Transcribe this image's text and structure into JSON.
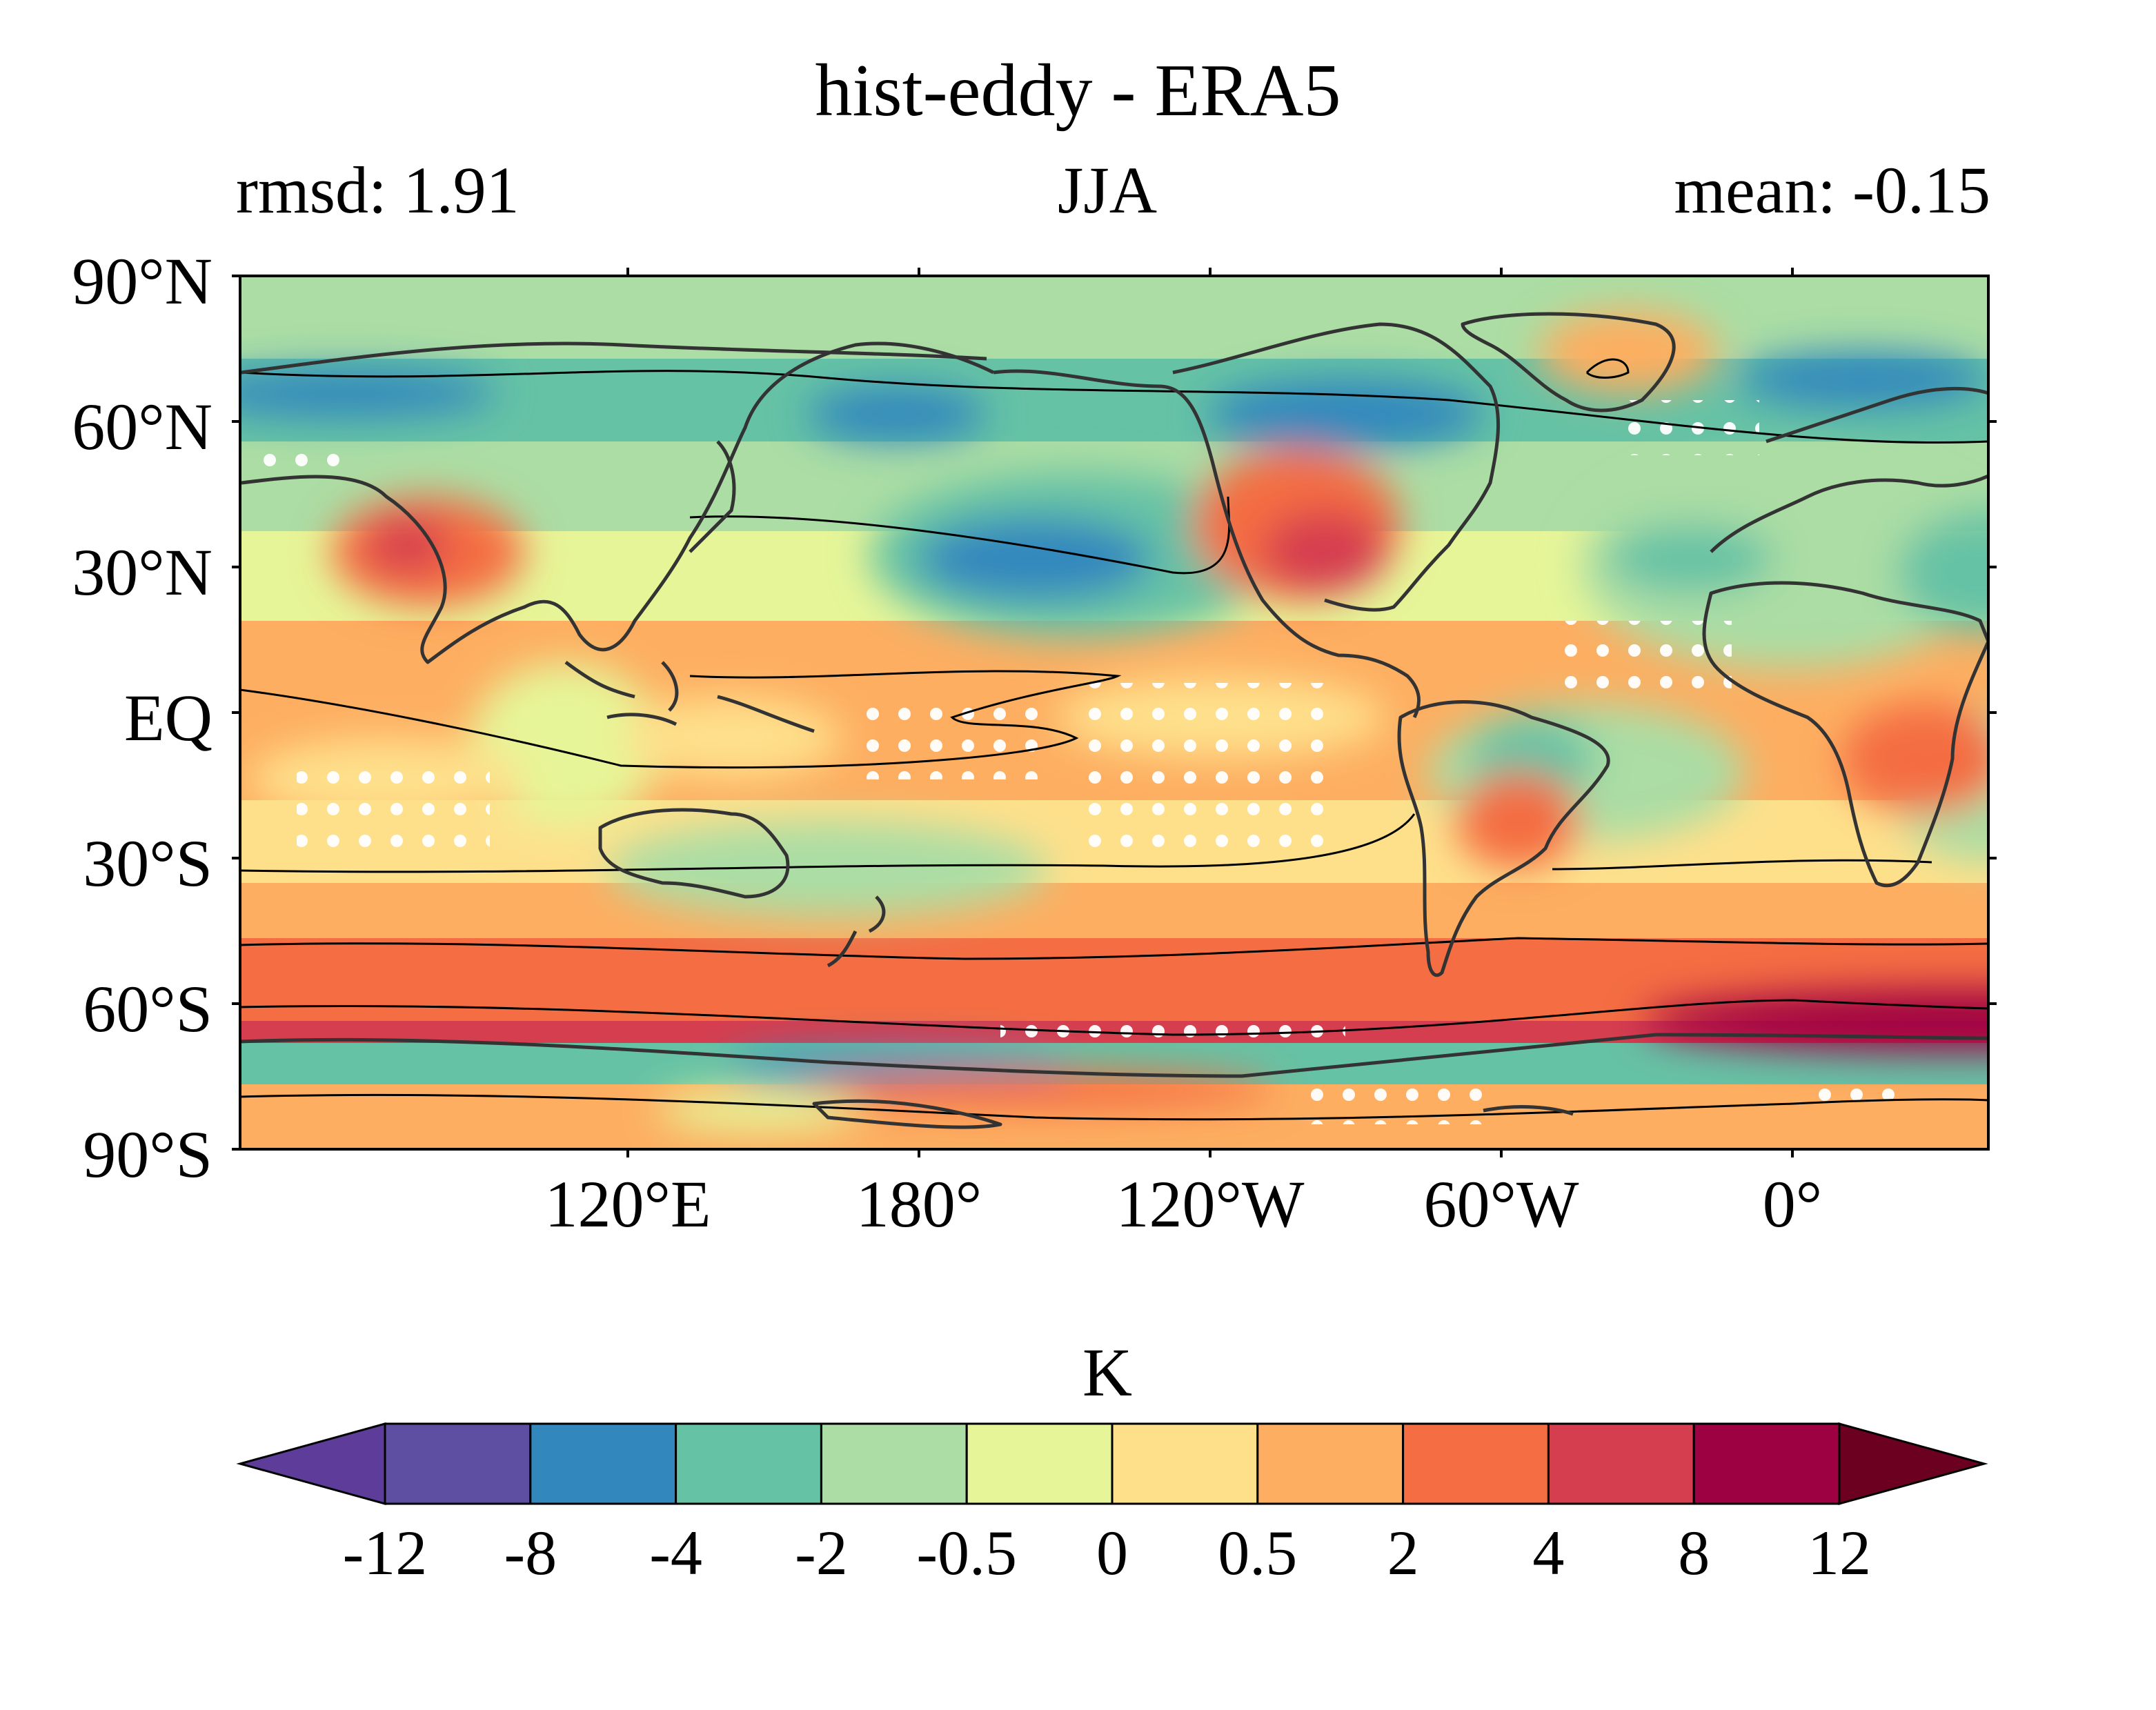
{
  "title": "hist-eddy - ERA5",
  "stats": {
    "rmsd": "rmsd: 1.91",
    "season": "JJA",
    "mean": "mean: -0.15"
  },
  "map": {
    "lat_labels": [
      "90°N",
      "60°N",
      "30°N",
      "EQ",
      "30°S",
      "60°S",
      "90°S"
    ],
    "lon_labels": [
      "120°E",
      "180°",
      "120°W",
      "60°W",
      "0°"
    ],
    "field": "temperature difference (hist-eddy minus ERA5), JJA",
    "overlay": "black contour lines, coastlines and white stippling dots"
  },
  "colorbar": {
    "label": "K",
    "ticks": [
      "-12",
      "-8",
      "-4",
      "-2",
      "-0.5",
      "0",
      "0.5",
      "2",
      "4",
      "8",
      "12"
    ],
    "colors": [
      "#5e3c99",
      "#5e4fa2",
      "#3288bd",
      "#66c2a5",
      "#abdda4",
      "#e6f598",
      "#fee08b",
      "#fdae61",
      "#f46d43",
      "#d53e4f",
      "#9e0142",
      "#6b0020"
    ]
  }
}
